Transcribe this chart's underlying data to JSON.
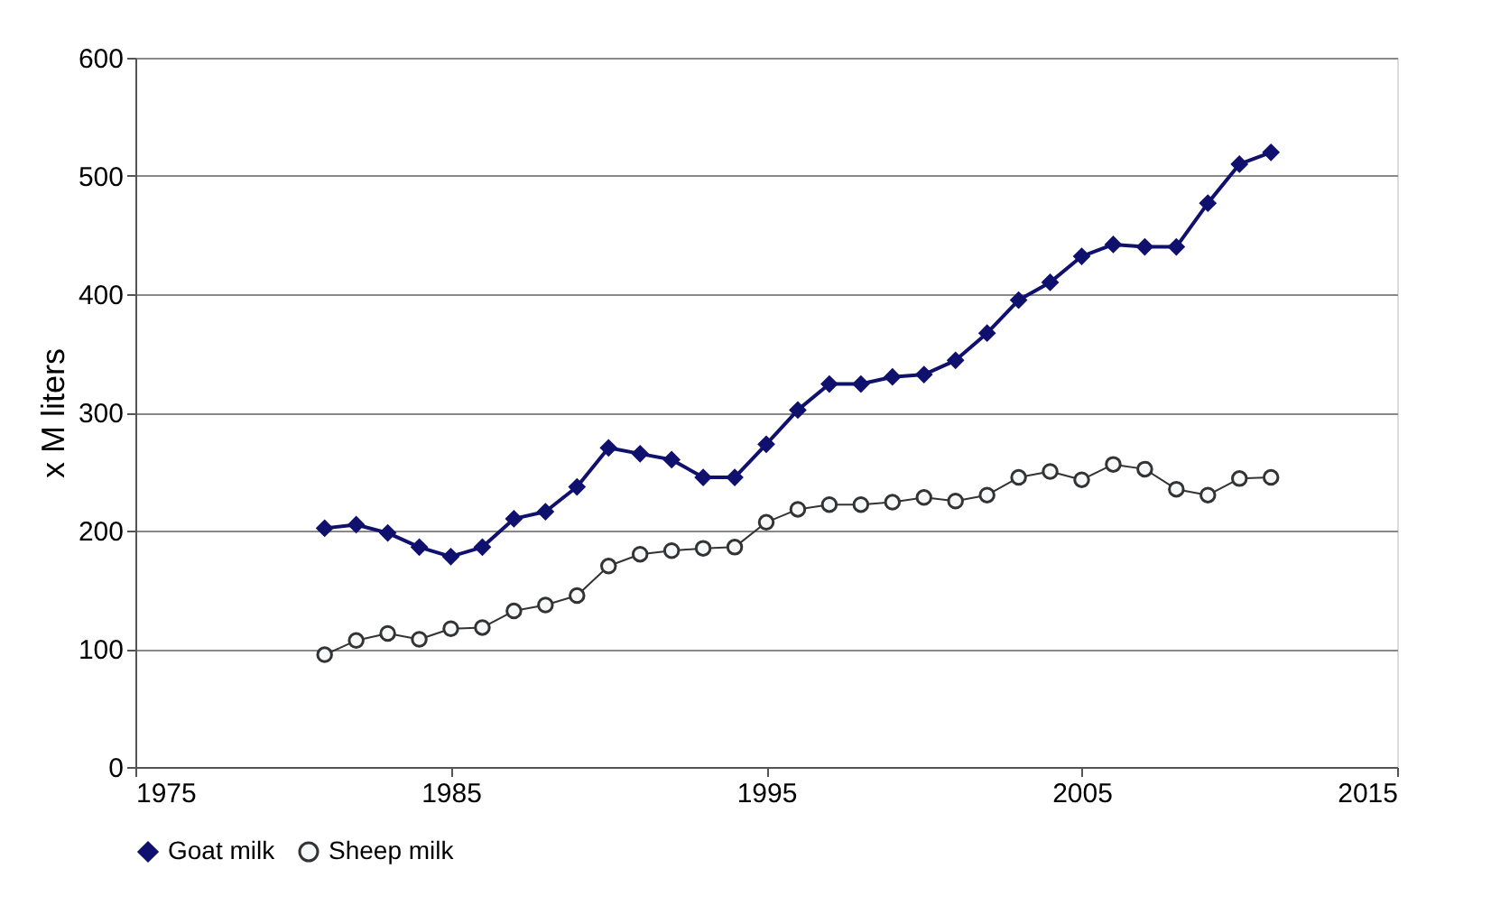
{
  "chart_data": {
    "type": "line",
    "ylabel": "x M liters",
    "x": [
      1981,
      1982,
      1983,
      1984,
      1985,
      1986,
      1987,
      1988,
      1989,
      1990,
      1991,
      1992,
      1993,
      1994,
      1995,
      1996,
      1997,
      1998,
      1999,
      2000,
      2001,
      2002,
      2003,
      2004,
      2005,
      2006,
      2007,
      2008,
      2009,
      2010,
      2011
    ],
    "series": [
      {
        "name": "Goat milk",
        "color": "#10106e",
        "marker": "diamond",
        "values": [
          202,
          205,
          198,
          186,
          178,
          186,
          210,
          216,
          237,
          270,
          265,
          260,
          245,
          245,
          273,
          302,
          324,
          324,
          330,
          332,
          344,
          367,
          395,
          410,
          432,
          442,
          440,
          440,
          477,
          510,
          520
        ]
      },
      {
        "name": "Sheep milk",
        "color": "#333333",
        "marker": "circle",
        "values": [
          95,
          107,
          113,
          108,
          117,
          118,
          132,
          137,
          145,
          170,
          180,
          183,
          185,
          186,
          207,
          218,
          222,
          222,
          224,
          228,
          225,
          230,
          245,
          250,
          243,
          256,
          252,
          235,
          230,
          244,
          245
        ]
      }
    ],
    "xlim": [
      1975,
      2015
    ],
    "xticks": [
      1975,
      1985,
      1995,
      2005,
      2015
    ],
    "ylim": [
      0,
      600
    ],
    "yticks": [
      0,
      100,
      200,
      300,
      400,
      500,
      600
    ],
    "grid": "y",
    "legend": "bottom",
    "line_style": "solid"
  }
}
